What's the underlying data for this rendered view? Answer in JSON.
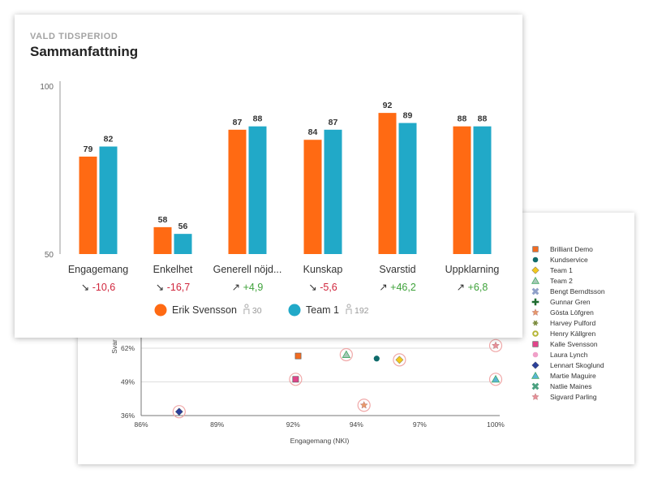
{
  "summary_card": {
    "eyebrow": "VALD TIDSPERIOD",
    "title": "Sammanfattning"
  },
  "scatter_card": {
    "y_axis_fragment": "Svar",
    "x_axis_label": "Engagemang (NKI)"
  },
  "chart_data": [
    {
      "type": "bar",
      "ylim": [
        50,
        100
      ],
      "y_ticks": [
        "100",
        "50"
      ],
      "categories": [
        "Engagemang",
        "Enkelhet",
        "Generell nöjd...",
        "Kunskap",
        "Svarstid",
        "Uppklarning"
      ],
      "series": [
        {
          "name": "Erik Svensson",
          "count": "30",
          "color": "#ff6a13",
          "values": [
            79,
            58,
            87,
            84,
            92,
            88
          ]
        },
        {
          "name": "Team 1",
          "count": "192",
          "color": "#21a9c8",
          "values": [
            82,
            56,
            88,
            87,
            89,
            88
          ]
        }
      ],
      "deltas": [
        "-10,6",
        "-16,7",
        "+4,9",
        "-5,6",
        "+46,2",
        "+6,8"
      ],
      "delta_arrows": [
        "↘",
        "↘",
        "↗",
        "↘",
        "↗",
        "↗"
      ],
      "colors": {
        "negative": "#d0253c",
        "positive": "#3ea23a"
      },
      "legend_placement": "bottom"
    },
    {
      "type": "scatter",
      "xlabel": "Engagemang (NKI)",
      "xlim": [
        86,
        100
      ],
      "ylim": [
        36,
        72
      ],
      "x_ticks": [
        "86%",
        "89%",
        "92%",
        "94%",
        "97%",
        "100%"
      ],
      "x_tick_values": [
        86,
        89,
        92,
        94.5,
        97,
        100
      ],
      "y_ticks": [
        "62%",
        "49%",
        "36%"
      ],
      "y_tick_values": [
        62,
        49,
        36
      ],
      "legend_placement": "right",
      "series": [
        {
          "name": "Brilliant Demo",
          "marker": "square",
          "color": "#f26b21",
          "x": 92.2,
          "y": 59,
          "ring": false
        },
        {
          "name": "Kundservice",
          "marker": "circle",
          "color": "#0f6b6b",
          "x": 95.3,
          "y": 58,
          "ring": false
        },
        {
          "name": "Team 1",
          "marker": "diamond",
          "color": "#f2c81e",
          "x": 96.2,
          "y": 57.5,
          "ring": true
        },
        {
          "name": "Team 2",
          "marker": "triangle",
          "color": "#a8c8b8",
          "x": 94.1,
          "y": 59.5,
          "ring": true
        },
        {
          "name": "Bengt Berndtsson",
          "marker": "cross",
          "color": "#8fa0c8",
          "x": null,
          "y": null,
          "ring": false
        },
        {
          "name": "Gunnar Gren",
          "marker": "plus",
          "color": "#1f6b2f",
          "x": null,
          "y": null,
          "ring": false
        },
        {
          "name": "Gösta Löfgren",
          "marker": "star",
          "color": "#e89a6a",
          "x": 94.8,
          "y": 40,
          "ring": true
        },
        {
          "name": "Harvey Pulford",
          "marker": "asterisk",
          "color": "#7a8a3a",
          "x": null,
          "y": null,
          "ring": false
        },
        {
          "name": "Henry Källgren",
          "marker": "circle-o",
          "color": "#b5b535",
          "x": null,
          "y": null,
          "ring": false
        },
        {
          "name": "Kalle Svensson",
          "marker": "square",
          "color": "#e0458a",
          "x": 92.1,
          "y": 50,
          "ring": true
        },
        {
          "name": "Laura Lynch",
          "marker": "circle",
          "color": "#f0a0c8",
          "x": null,
          "y": null,
          "ring": false
        },
        {
          "name": "Lennart Skoglund",
          "marker": "diamond",
          "color": "#2a3f9a",
          "x": 87.5,
          "y": 37.5,
          "ring": true
        },
        {
          "name": "Martie Maguire",
          "marker": "triangle",
          "color": "#5ab4d8",
          "x": 100,
          "y": 50,
          "ring": true
        },
        {
          "name": "Natlie Maines",
          "marker": "cross",
          "color": "#4aa080",
          "x": null,
          "y": null,
          "ring": false
        },
        {
          "name": "Sigvard Parling",
          "marker": "star",
          "color": "#e8909a",
          "x": 100,
          "y": 63,
          "ring": true
        }
      ]
    }
  ]
}
